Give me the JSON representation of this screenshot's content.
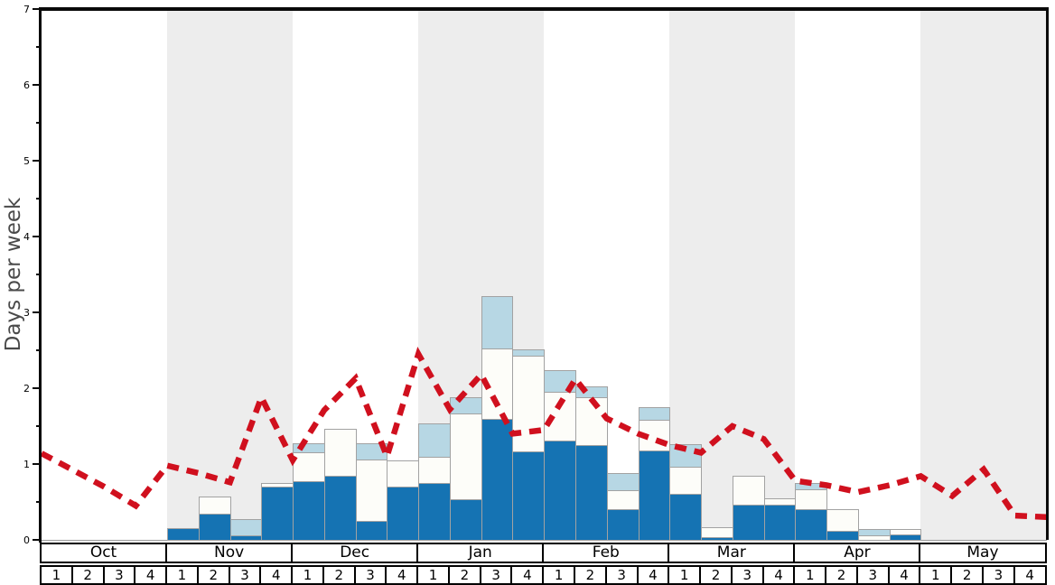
{
  "y_axis": {
    "label": "Days per week",
    "tick_labels": [
      "0",
      "1",
      "2",
      "3",
      "4",
      "5",
      "6",
      "7"
    ],
    "minor_step": 0.5,
    "max": 7
  },
  "x_axis": {
    "months": [
      "Oct",
      "Nov",
      "Dec",
      "Jan",
      "Feb",
      "Mar",
      "Apr",
      "May"
    ],
    "week_labels": [
      "1",
      "2",
      "3",
      "4"
    ]
  },
  "chart_data": {
    "type": "bar",
    "stacked": true,
    "title": "",
    "xlabel": "",
    "ylabel": "Days per week",
    "ylim": [
      0,
      7
    ],
    "grid": false,
    "legend": "none",
    "categories": [
      "Oct 1",
      "Oct 2",
      "Oct 3",
      "Oct 4",
      "Nov 1",
      "Nov 2",
      "Nov 3",
      "Nov 4",
      "Dec 1",
      "Dec 2",
      "Dec 3",
      "Dec 4",
      "Jan 1",
      "Jan 2",
      "Jan 3",
      "Jan 4",
      "Feb 1",
      "Feb 2",
      "Feb 3",
      "Feb 4",
      "Mar 1",
      "Mar 2",
      "Mar 3",
      "Mar 4",
      "Apr 1",
      "Apr 2",
      "Apr 3",
      "Apr 4",
      "May 1",
      "May 2",
      "May 3",
      "May 4"
    ],
    "series": [
      {
        "name": "bottom-segment-dark-blue",
        "color": "#1573b3",
        "values": [
          0,
          0,
          0,
          0,
          0.15,
          0.35,
          0.06,
          0.7,
          0.77,
          0.84,
          0.25,
          0.7,
          0.75,
          0.53,
          1.6,
          1.17,
          1.31,
          1.25,
          0.4,
          1.18,
          0.61,
          0.04,
          0.47,
          0.47,
          0.41,
          0.12,
          0,
          0.07,
          0,
          0,
          0,
          0
        ]
      },
      {
        "name": "middle-segment-white",
        "color": "#fdfdf9",
        "values": [
          0,
          0,
          0,
          0,
          0,
          0.22,
          0,
          0.05,
          0.38,
          0.62,
          0.81,
          0.35,
          0.35,
          1.14,
          0.92,
          1.26,
          0.64,
          0.63,
          0.25,
          0.4,
          0.36,
          0.13,
          0.37,
          0.08,
          0.26,
          0.29,
          0.06,
          0.07,
          0,
          0,
          0,
          0
        ]
      },
      {
        "name": "top-segment-light-blue",
        "color": "#b7d7e4",
        "values": [
          0,
          0,
          0,
          0,
          0,
          0,
          0.21,
          0,
          0.12,
          0,
          0.21,
          0,
          0.43,
          0.21,
          0.7,
          0.08,
          0.29,
          0.14,
          0.23,
          0.17,
          0.29,
          0,
          0,
          0,
          0.08,
          0,
          0.08,
          0,
          0,
          0,
          0,
          0
        ]
      }
    ],
    "line_overlay": {
      "name": "red-dashed-average-line",
      "color": "#d0101e",
      "style": "dashed",
      "x_positions": "33 points at week-start boundaries from left axis to right edge",
      "values": [
        1.14,
        0.92,
        0.7,
        0.45,
        0.98,
        0.88,
        0.76,
        1.88,
        1.05,
        1.71,
        2.13,
        1.1,
        2.45,
        1.72,
        2.18,
        1.4,
        1.45,
        2.12,
        1.6,
        1.4,
        1.25,
        1.15,
        1.5,
        1.33,
        0.78,
        0.72,
        0.63,
        0.72,
        0.84,
        0.58,
        0.93,
        0.32,
        0.3
      ]
    },
    "background_bands": {
      "shaded_months": [
        "Nov",
        "Jan",
        "Mar",
        "May"
      ],
      "shaded_color": "#ededed",
      "plain_color": "#ffffff"
    }
  },
  "colors": {
    "bar_dark_blue": "#1573b3",
    "bar_white": "#fdfdf9",
    "bar_light_blue": "#b7d7e4",
    "bar_border": "#a2a2a2",
    "line_red": "#d0101e",
    "band_gray": "#ededed",
    "axis_black": "#0a0a0a",
    "ylabel_gray": "#4a4a4a"
  }
}
